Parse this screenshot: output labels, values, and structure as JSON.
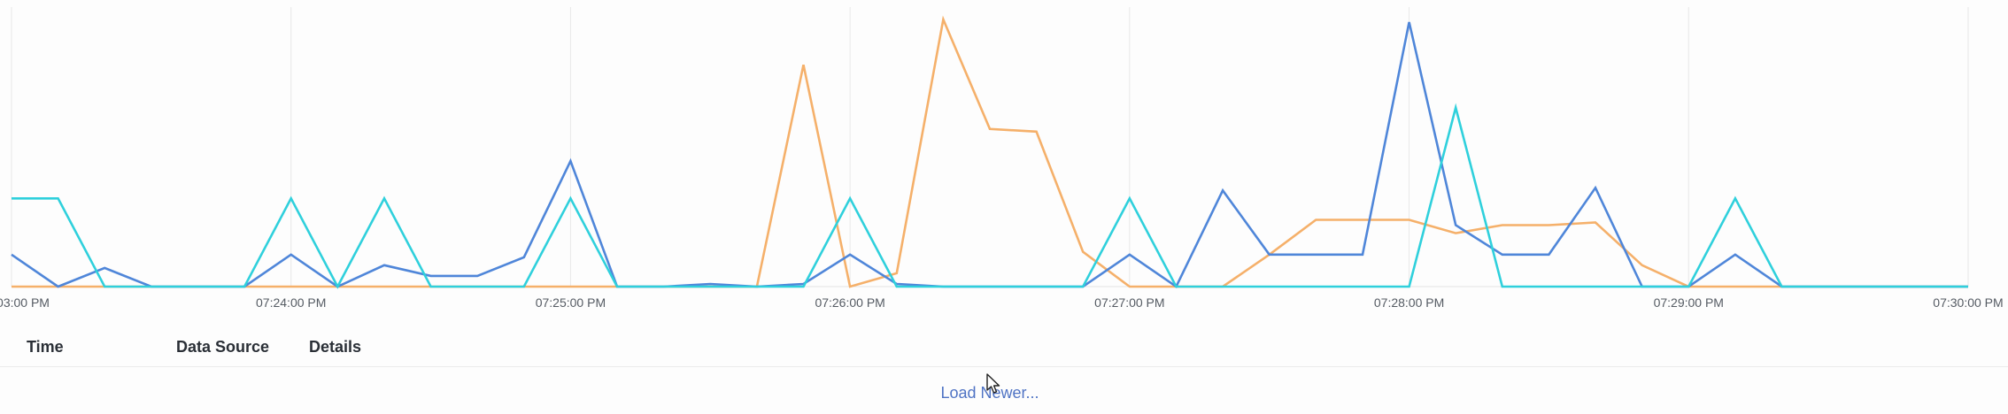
{
  "chart_data": {
    "type": "line",
    "x_ticks": [
      "03:00 PM",
      "07:24:00 PM",
      "07:25:00 PM",
      "07:26:00 PM",
      "07:27:00 PM",
      "07:28:00 PM",
      "07:29:00 PM",
      "07:30:00 PM"
    ],
    "x_tick_index": [
      0,
      6,
      12,
      18,
      24,
      30,
      36,
      42
    ],
    "ylim": [
      0,
      100
    ],
    "grid": true,
    "legend": "none",
    "series": [
      {
        "color": "#f5b06a",
        "values": [
          0,
          0,
          0,
          0,
          0,
          0,
          0,
          0,
          0,
          0,
          0,
          0,
          0,
          0,
          0,
          0,
          0,
          83,
          0,
          5,
          100,
          59,
          58,
          13,
          0,
          0,
          0,
          12,
          25,
          25,
          25,
          20,
          23,
          23,
          24,
          8,
          0,
          0,
          0,
          0,
          0,
          0,
          0
        ]
      },
      {
        "color": "#4f86d9",
        "values": [
          12,
          0,
          7,
          0,
          0,
          0,
          12,
          0,
          8,
          4,
          4,
          11,
          47,
          0,
          0,
          1,
          0,
          1,
          12,
          1,
          0,
          0,
          0,
          0,
          12,
          0,
          36,
          12,
          12,
          12,
          99,
          23,
          12,
          12,
          37,
          0,
          0,
          12,
          0,
          0,
          0,
          0,
          0
        ]
      },
      {
        "color": "#2fd0dc",
        "values": [
          33,
          33,
          0,
          0,
          0,
          0,
          33,
          0,
          33,
          0,
          0,
          0,
          33,
          0,
          0,
          0,
          0,
          0,
          33,
          0,
          0,
          0,
          0,
          0,
          33,
          0,
          0,
          0,
          0,
          0,
          0,
          67,
          0,
          0,
          0,
          0,
          0,
          33,
          0,
          0,
          0,
          0,
          0
        ]
      }
    ]
  },
  "table": {
    "headers": {
      "time": "Time",
      "data_source": "Data Source",
      "details": "Details"
    }
  },
  "load_newer_label": "Load Newer...",
  "icons": {
    "cursor": "cursor-arrow-icon"
  }
}
